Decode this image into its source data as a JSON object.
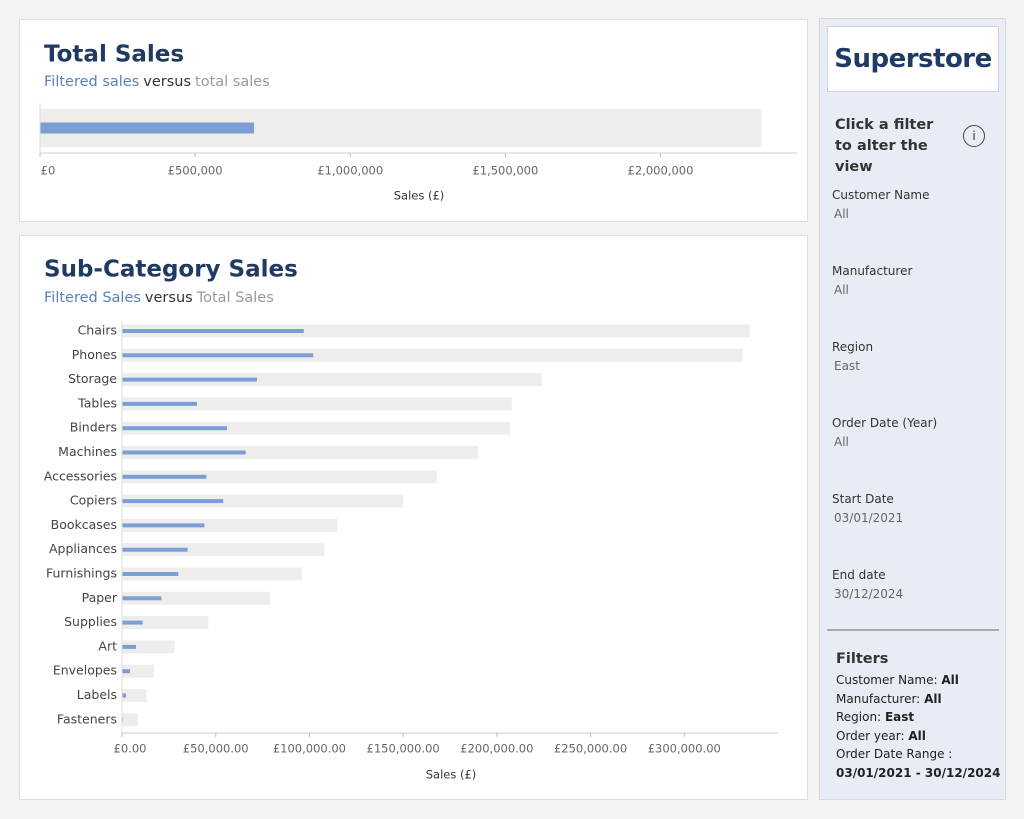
{
  "chart_data": [
    {
      "type": "bar",
      "orientation": "horizontal",
      "title": "Total Sales",
      "subtitle_joiner": "versus",
      "series": [
        {
          "name": "Filtered sales",
          "color": "#7b9fd4",
          "values": [
            690000
          ]
        },
        {
          "name": "total sales",
          "color": "#efedec",
          "values": [
            2326000
          ]
        }
      ],
      "xlim": [
        0,
        2440000
      ],
      "xticks": [
        {
          "value": 0,
          "label": "£0"
        },
        {
          "value": 500000,
          "label": "£500,000"
        },
        {
          "value": 1000000,
          "label": "£1,000,000"
        },
        {
          "value": 1500000,
          "label": "£1,500,000"
        },
        {
          "value": 2000000,
          "label": "£2,000,000"
        }
      ],
      "xlabel": "Sales (£)"
    },
    {
      "type": "bar",
      "orientation": "horizontal",
      "title": "Sub-Category Sales",
      "subtitle_joiner": "versus",
      "categories": [
        "Chairs",
        "Phones",
        "Storage",
        "Tables",
        "Binders",
        "Machines",
        "Accessories",
        "Copiers",
        "Bookcases",
        "Appliances",
        "Furnishings",
        "Paper",
        "Supplies",
        "Art",
        "Envelopes",
        "Labels",
        "Fasteners"
      ],
      "series": [
        {
          "name": "Filtered Sales",
          "color": "#7b9fd4",
          "values": [
            97000,
            102000,
            72000,
            40000,
            56000,
            66000,
            45000,
            54000,
            44000,
            35000,
            30000,
            21000,
            11000,
            7500,
            4300,
            2100,
            500
          ]
        },
        {
          "name": "Total Sales",
          "color": "#efedec",
          "values": [
            335000,
            331000,
            224000,
            208000,
            207000,
            190000,
            168000,
            150000,
            115000,
            108000,
            96000,
            79000,
            46000,
            28000,
            17000,
            13000,
            8500
          ]
        }
      ],
      "xlim": [
        0,
        350000
      ],
      "xticks": [
        {
          "value": 0,
          "label": "£0.00"
        },
        {
          "value": 50000,
          "label": "£50,000.00"
        },
        {
          "value": 100000,
          "label": "£100,000.00"
        },
        {
          "value": 150000,
          "label": "£150,000.00"
        },
        {
          "value": 200000,
          "label": "£200,000.00"
        },
        {
          "value": 250000,
          "label": "£250,000.00"
        },
        {
          "value": 300000,
          "label": "£300,000.00"
        }
      ],
      "xlabel": "Sales (£)"
    }
  ],
  "sidebar": {
    "logo": "Superstore",
    "heading": "Click a filter to alter the view",
    "info_icon": "i",
    "filters": [
      {
        "label": "Customer Name",
        "value": "All"
      },
      {
        "label": "Manufacturer",
        "value": "All"
      },
      {
        "label": "Region",
        "value": "East"
      },
      {
        "label": "Order Date (Year)",
        "value": "All"
      },
      {
        "label": "Start Date",
        "value": "03/01/2021"
      },
      {
        "label": "End date",
        "value": "30/12/2024"
      }
    ],
    "summary_title": "Filters",
    "summary": [
      {
        "label": "Customer Name:",
        "value": "All"
      },
      {
        "label": "Manufacturer:",
        "value": "All"
      },
      {
        "label": "Region:",
        "value": "East"
      },
      {
        "label": "Order year:",
        "value": "All"
      },
      {
        "label": "Order Date Range :",
        "value": "03/01/2021 - 30/12/2024"
      }
    ]
  }
}
